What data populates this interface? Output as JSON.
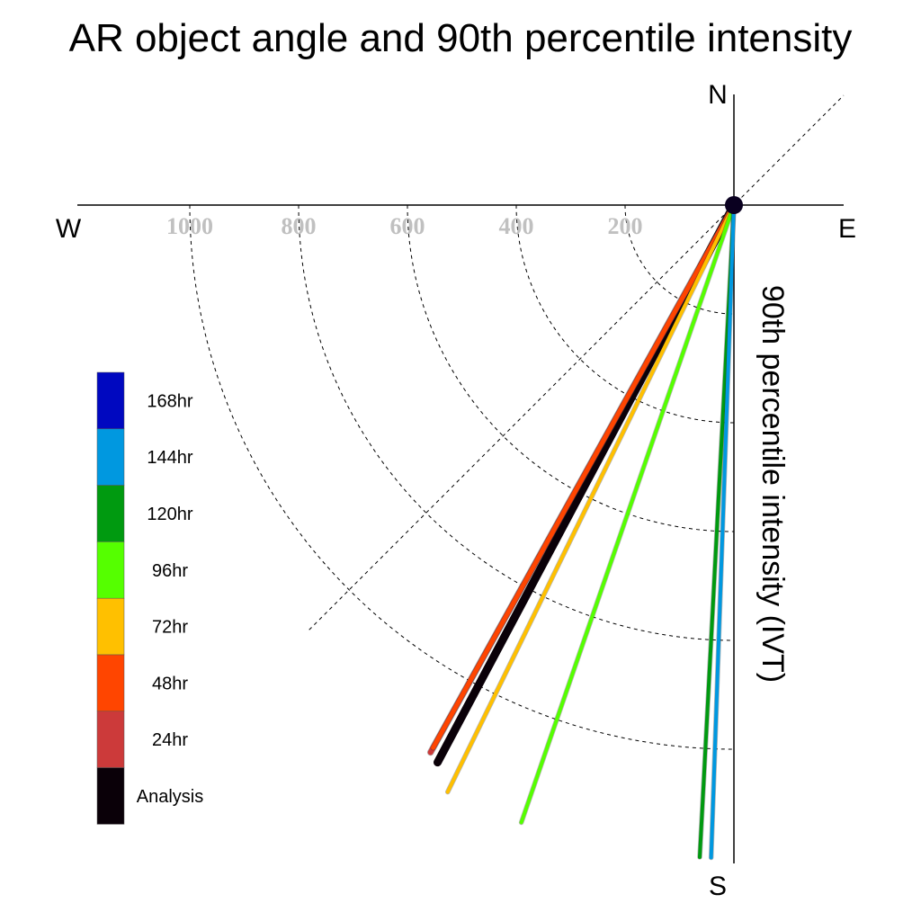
{
  "chart_data": {
    "type": "polar-vector",
    "title": "AR object angle and 90th percentile intensity",
    "ylabel": "90th percentile intensity (IVT)",
    "compass": {
      "north": "N",
      "south": "S",
      "east": "E",
      "west": "W"
    },
    "radial_ticks": [
      200,
      400,
      600,
      800,
      1000
    ],
    "radial_tick_labels": [
      "200",
      "400",
      "600",
      "800",
      "1000"
    ],
    "radius_max": 1200,
    "grid": true,
    "angle_convention": "degrees clockwise from north",
    "series": [
      {
        "name": "Analysis",
        "angle": 208,
        "value": 1160,
        "color": "#0a0008"
      },
      {
        "name": "24hr",
        "angle": 209,
        "value": 1150,
        "color": "#cc3a3a"
      },
      {
        "name": "48hr",
        "angle": 209,
        "value": 1140,
        "color": "#ff4500"
      },
      {
        "name": "72hr",
        "angle": 206,
        "value": 1200,
        "color": "#ffc000"
      },
      {
        "name": "96hr",
        "angle": 199,
        "value": 1200,
        "color": "#55ff00"
      },
      {
        "name": "120hr",
        "angle": 183,
        "value": 1200,
        "color": "#009a10"
      },
      {
        "name": "144hr",
        "angle": 182,
        "value": 1200,
        "color": "#0098e0"
      },
      {
        "name": "168hr",
        "angle": 181,
        "value": 0,
        "color": "#0008c0"
      }
    ],
    "legend": {
      "placement": "left",
      "entries": [
        "168hr",
        "144hr",
        "120hr",
        "96hr",
        "72hr",
        "48hr",
        "24hr",
        "Analysis"
      ]
    }
  }
}
